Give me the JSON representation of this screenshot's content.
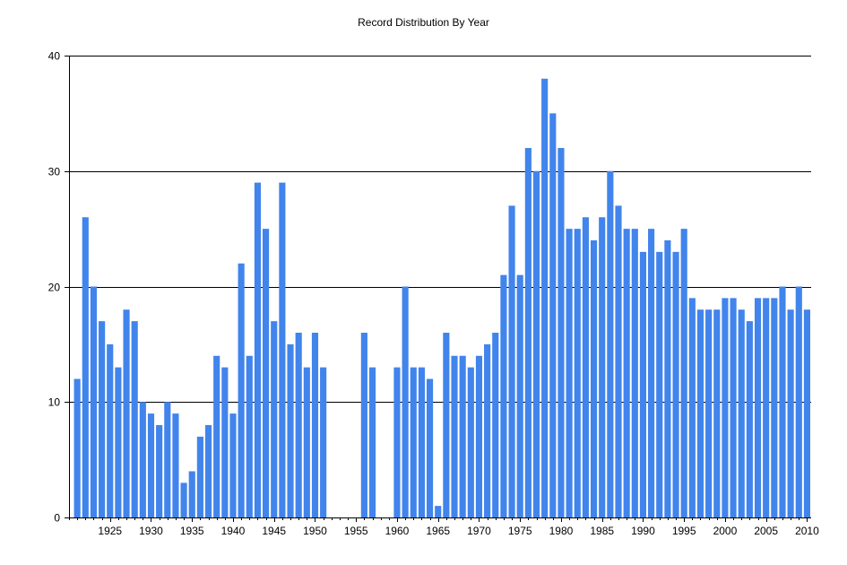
{
  "chart_data": {
    "type": "bar",
    "title": "Record Distribution By Year",
    "xlabel": "",
    "ylabel": "",
    "x": [
      1921,
      1922,
      1923,
      1924,
      1925,
      1926,
      1927,
      1928,
      1929,
      1930,
      1931,
      1932,
      1933,
      1934,
      1935,
      1936,
      1937,
      1938,
      1939,
      1940,
      1941,
      1942,
      1943,
      1944,
      1945,
      1946,
      1947,
      1948,
      1949,
      1950,
      1951,
      1952,
      1953,
      1954,
      1955,
      1956,
      1957,
      1958,
      1959,
      1960,
      1961,
      1962,
      1963,
      1964,
      1965,
      1966,
      1967,
      1968,
      1969,
      1970,
      1971,
      1972,
      1973,
      1974,
      1975,
      1976,
      1977,
      1978,
      1979,
      1980,
      1981,
      1982,
      1983,
      1984,
      1985,
      1986,
      1987,
      1988,
      1989,
      1990,
      1991,
      1992,
      1993,
      1994,
      1995,
      1996,
      1997,
      1998,
      1999,
      2000,
      2001,
      2002,
      2003,
      2004,
      2005,
      2006,
      2007,
      2008,
      2009,
      2010
    ],
    "values": [
      12,
      26,
      20,
      17,
      15,
      13,
      18,
      17,
      10,
      9,
      8,
      10,
      9,
      3,
      4,
      7,
      8,
      14,
      13,
      9,
      22,
      14,
      29,
      25,
      17,
      29,
      15,
      16,
      13,
      16,
      13,
      0,
      0,
      0,
      0,
      16,
      13,
      0,
      0,
      13,
      20,
      13,
      13,
      12,
      1,
      16,
      14,
      14,
      13,
      14,
      15,
      16,
      21,
      27,
      21,
      32,
      30,
      38,
      35,
      32,
      25,
      25,
      26,
      24,
      26,
      30,
      27,
      25,
      25,
      23,
      25,
      23,
      24,
      23,
      25,
      19,
      18,
      18,
      18,
      19,
      19,
      18,
      17,
      19,
      19,
      19,
      20,
      18,
      20,
      18
    ],
    "xlim": [
      1920,
      2010.5
    ],
    "ylim": [
      0,
      40
    ],
    "yticks": [
      0,
      10,
      20,
      30,
      40
    ],
    "xticks": [
      1925,
      1930,
      1935,
      1940,
      1945,
      1950,
      1955,
      1960,
      1965,
      1970,
      1975,
      1980,
      1985,
      1990,
      1995,
      2000,
      2005,
      2010
    ],
    "grid": "horizontal",
    "bar_color": "#4184EC",
    "legend": "none"
  }
}
